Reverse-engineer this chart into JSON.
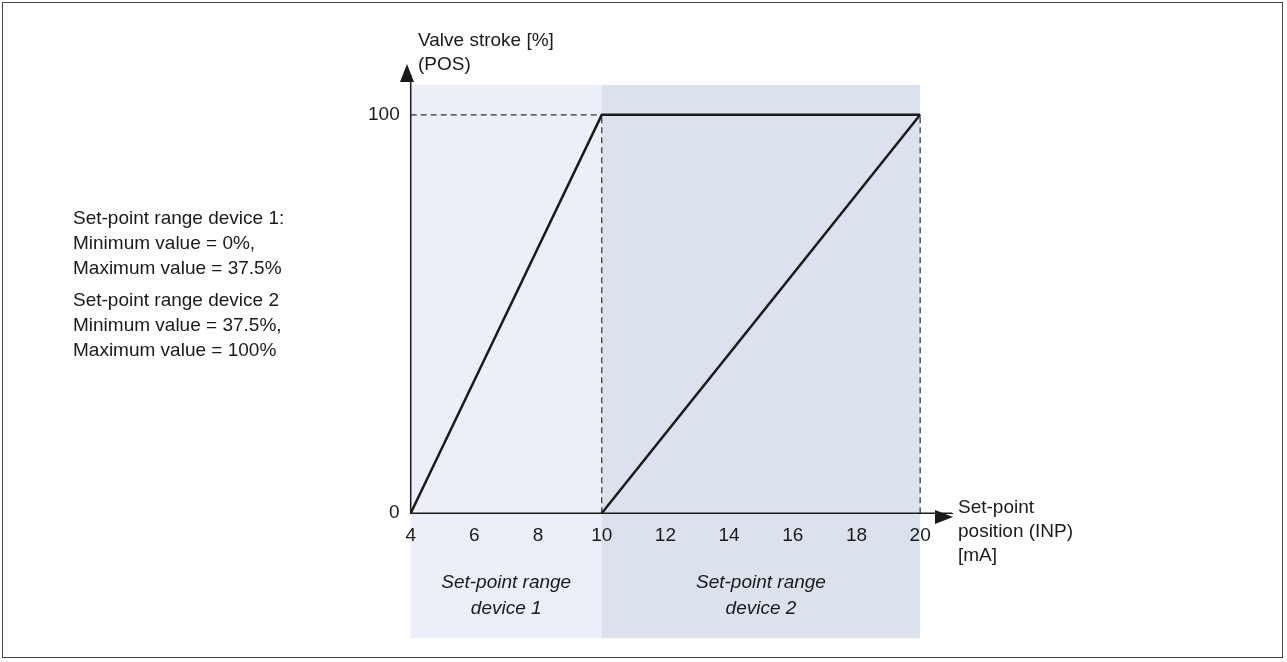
{
  "chart_data": {
    "type": "line",
    "xlabel": "Set-point\nposition (INP)\n[mA]",
    "ylabel": "Valve stroke [%]\n(POS)",
    "xlim": [
      4,
      21
    ],
    "xticks": [
      4,
      6,
      8,
      10,
      12,
      14,
      16,
      18,
      20
    ],
    "ylim": [
      0,
      110
    ],
    "yticks": [
      0,
      100
    ],
    "grid": false,
    "legend": false,
    "marker": "none",
    "line_style": "solid",
    "series": [
      {
        "color": "#1a1a1a",
        "x": [
          4,
          10,
          20
        ],
        "values": [
          0,
          100,
          100
        ]
      },
      {
        "color": "#1a1a1a",
        "x": [
          10,
          20
        ],
        "values": [
          0,
          100
        ]
      }
    ],
    "ref_lines": [
      {
        "axis": "x",
        "value": 10,
        "color": "#333333",
        "line_style": "dashed"
      },
      {
        "axis": "x",
        "value": 20,
        "color": "#333333",
        "line_style": "dashed"
      },
      {
        "axis": "y",
        "value": 100,
        "color": "#333333",
        "line_style": "dashed"
      }
    ],
    "bands": [
      {
        "axis": "x",
        "from": 4,
        "to": 10,
        "label": "Set-point range\ndevice 1",
        "color": "#eceff7"
      },
      {
        "axis": "x",
        "from": 10,
        "to": 20,
        "label": "Set-point range\ndevice 2",
        "color": "#dbe2ee"
      }
    ],
    "annotations": [
      "Set-point range device 1:\nMinimum value  = 0%,\nMaximum value = 37.5%",
      "Set-point range device 2\nMinimum value  = 37.5%,\nMaximum value = 100%"
    ]
  }
}
